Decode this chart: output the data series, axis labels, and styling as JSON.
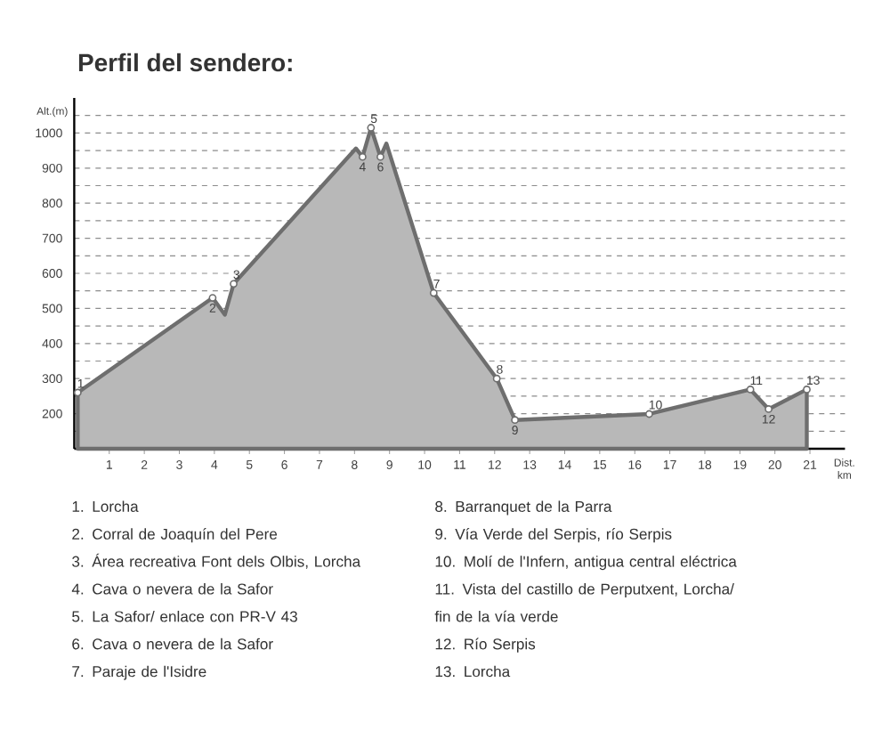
{
  "chart_data": {
    "type": "area",
    "title": "Perfil del sendero:",
    "xlabel": "Dist. km",
    "ylabel": "Alt.(m)",
    "xlim": [
      0,
      22
    ],
    "ylim": [
      100,
      1100
    ],
    "xticks": [
      1,
      2,
      3,
      4,
      5,
      6,
      7,
      8,
      9,
      10,
      11,
      12,
      13,
      14,
      15,
      16,
      17,
      18,
      19,
      20,
      21
    ],
    "yticks": [
      {
        "value": 150,
        "label": null
      },
      200,
      {
        "value": 250,
        "label": null
      },
      300,
      {
        "value": 350,
        "label": null
      },
      400,
      {
        "value": 450,
        "label": null
      },
      500,
      {
        "value": 550,
        "label": null
      },
      600,
      {
        "value": 650,
        "label": null
      },
      700,
      {
        "value": 750,
        "label": null
      },
      800,
      {
        "value": 850,
        "label": null
      },
      900,
      {
        "value": 950,
        "label": null
      },
      1000,
      {
        "value": 1050,
        "label": null
      }
    ],
    "grid": "y",
    "marker": "none",
    "series": [
      {
        "color": "#6e6e6e",
        "x": [
          0.1,
          3.95,
          4.3,
          4.55,
          8.04,
          8.23,
          8.47,
          8.74,
          8.91,
          10.26,
          12.06,
          12.58,
          16.41,
          19.3,
          19.82,
          20.91
        ],
        "values": [
          260,
          530,
          482,
          570,
          956,
          932,
          1015,
          932,
          970,
          544,
          300,
          182,
          199,
          269,
          213,
          269
        ]
      },
      {
        "type": "scatter",
        "marker": "circle",
        "color": "#6e6e6e",
        "x": [
          0.1,
          3.95,
          4.55,
          8.23,
          8.47,
          8.74,
          10.26,
          12.06,
          12.58,
          16.41,
          19.3,
          19.82,
          20.91
        ],
        "values": [
          260,
          530,
          570,
          932,
          1015,
          932,
          544,
          300,
          182,
          199,
          269,
          213,
          269
        ]
      }
    ],
    "annotations": [
      {
        "text": "1",
        "x": 0.1,
        "y": 260
      },
      {
        "text": "2",
        "x": 3.95,
        "y": 530
      },
      {
        "text": "3",
        "x": 4.55,
        "y": 570
      },
      {
        "text": "4",
        "x": 8.23,
        "y": 932
      },
      {
        "text": "5",
        "x": 8.47,
        "y": 1015
      },
      {
        "text": "6",
        "x": 8.74,
        "y": 932
      },
      {
        "text": "7",
        "x": 10.26,
        "y": 544
      },
      {
        "text": "8",
        "x": 12.06,
        "y": 300
      },
      {
        "text": "9",
        "x": 12.58,
        "y": 182
      },
      {
        "text": "10",
        "x": 16.41,
        "y": 199
      },
      {
        "text": "11",
        "x": 19.3,
        "y": 269
      },
      {
        "text": "12",
        "x": 19.82,
        "y": 213
      },
      {
        "text": "13",
        "x": 20.91,
        "y": 269
      },
      "1. Lorcha",
      "2. Corral de Joaquín del Pere",
      "3. Área recreativa Font dels Olbis, Lorcha",
      "4. Cava o nevera de la Safor",
      "5. La Safor/ enlace con PR-V 43",
      "6. Cava o nevera de la Safor",
      "7. Paraje de l'Isidre",
      "8. Barranquet de la Parra",
      "9. Vía Verde del Serpis, río Serpis",
      "10. Molí de l'Infern, antigua central eléctrica",
      "11. Vista del castillo de Perputxent, Lorcha/ fin de la vía verde",
      "12. Río Serpis",
      "13. Lorcha"
    ]
  }
}
